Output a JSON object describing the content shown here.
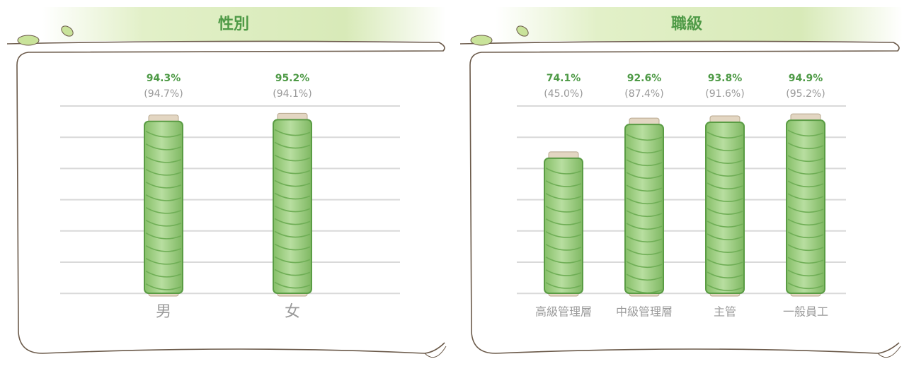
{
  "chart_data": [
    {
      "type": "bar",
      "title": "性別",
      "categories": [
        "男",
        "女"
      ],
      "series": [
        {
          "color": "#9fcf82",
          "values": [
            94.3,
            95.2
          ],
          "value_labels": [
            "94.3%",
            "95.2%"
          ]
        },
        {
          "values": [
            94.7,
            94.1
          ],
          "value_labels": [
            "(94.7%)",
            "(94.1%)"
          ]
        }
      ],
      "ylim": [
        0,
        100
      ]
    },
    {
      "type": "bar",
      "title": "職級",
      "categories": [
        "高級管理層",
        "中級管理層",
        "主管",
        "一般員工"
      ],
      "series": [
        {
          "color": "#9fcf82",
          "values": [
            74.1,
            92.6,
            93.8,
            94.9
          ],
          "value_labels": [
            "74.1%",
            "92.6%",
            "93.8%",
            "94.9%"
          ]
        },
        {
          "values": [
            45.0,
            87.4,
            91.6,
            95.2
          ],
          "value_labels": [
            "(45.0%)",
            "(87.4%)",
            "(91.6%)",
            "(95.2%)"
          ]
        }
      ],
      "ylim": [
        0,
        100
      ]
    }
  ]
}
